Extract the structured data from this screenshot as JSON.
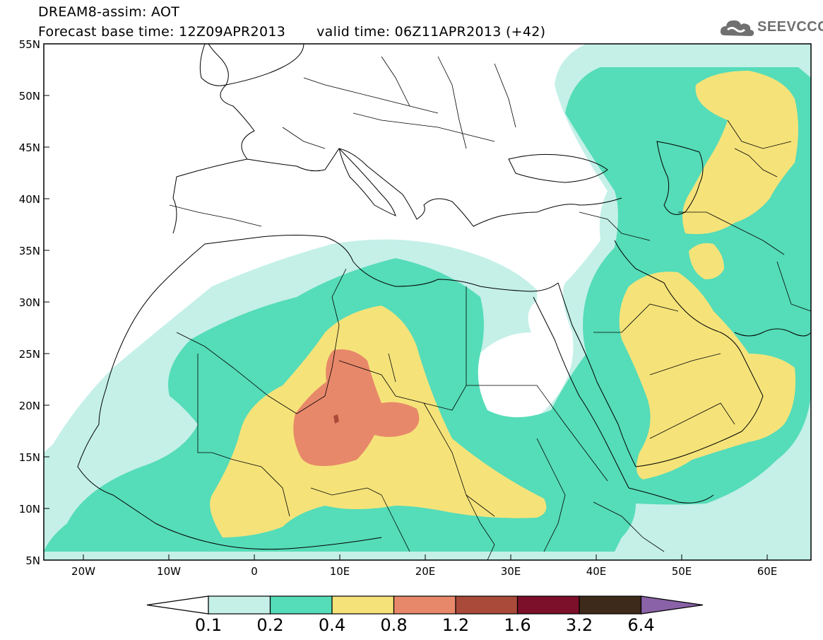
{
  "header": {
    "line1": "DREAM8-assim: AOT",
    "base_time": "Forecast base time: 12Z09APR2013",
    "valid_time": "valid time: 06Z11APR2013 (+42)"
  },
  "logo": {
    "text": "SEEVCCC",
    "icon": "cloud-icon"
  },
  "map": {
    "lat_labels": [
      "55N",
      "50N",
      "45N",
      "40N",
      "35N",
      "30N",
      "25N",
      "20N",
      "15N",
      "10N",
      "5N"
    ],
    "lon_labels": [
      "20W",
      "10W",
      "0",
      "10E",
      "20E",
      "30E",
      "40E",
      "50E",
      "60E"
    ]
  },
  "colorbar": {
    "labels": [
      "0.1",
      "0.2",
      "0.4",
      "0.8",
      "1.2",
      "1.6",
      "3.2",
      "6.4"
    ],
    "colors": [
      "#ffffff",
      "#c4f0e8",
      "#55dcb8",
      "#f5e37a",
      "#e8886a",
      "#aa4a3a",
      "#7c0f2a",
      "#3e2a1a",
      "#8a62a8"
    ]
  }
}
